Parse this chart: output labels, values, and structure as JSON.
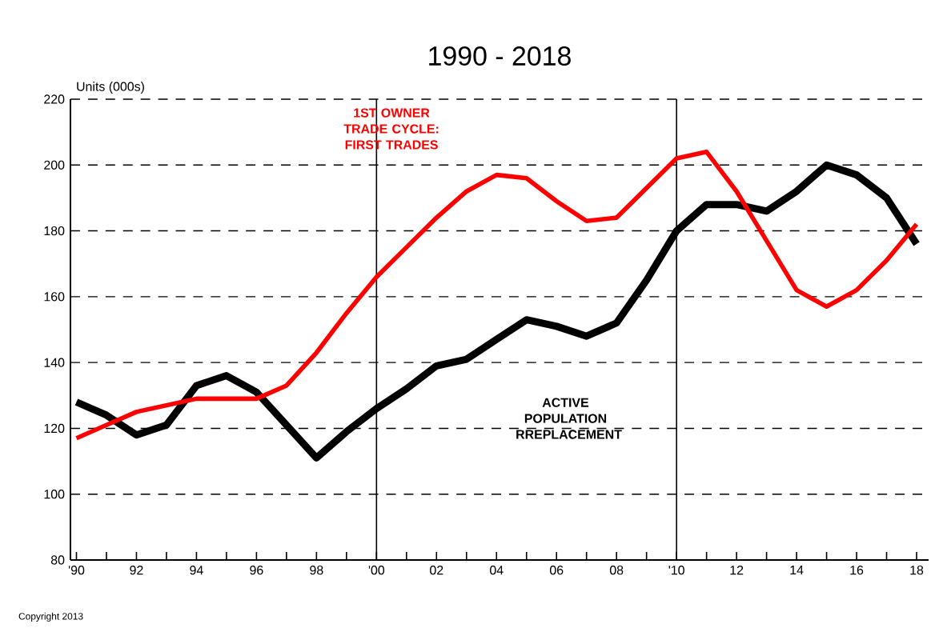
{
  "chart_data": {
    "type": "line",
    "title": "1990 - 2018",
    "ylabel": "Units (000s)",
    "x": [
      1990,
      1991,
      1992,
      1993,
      1994,
      1995,
      1996,
      1997,
      1998,
      1999,
      2000,
      2001,
      2002,
      2003,
      2004,
      2005,
      2006,
      2007,
      2008,
      2009,
      2010,
      2011,
      2012,
      2013,
      2014,
      2015,
      2016,
      2017,
      2018
    ],
    "series": [
      {
        "name": "ACTIVE POPULATION RREPLACEMENT",
        "color": "#000000",
        "values": [
          128,
          124,
          118,
          121,
          133,
          136,
          131,
          121,
          111,
          119,
          126,
          132,
          139,
          141,
          147,
          153,
          151,
          148,
          152,
          165,
          180,
          188,
          188,
          186,
          192,
          200,
          197,
          190,
          176
        ]
      },
      {
        "name": "1ST OWNER TRADE CYCLE: FIRST TRADES",
        "color": "#ff0000",
        "values": [
          117,
          121,
          125,
          127,
          129,
          129,
          129,
          133,
          143,
          155,
          166,
          175,
          184,
          192,
          197,
          196,
          189,
          183,
          184,
          193,
          202,
          204,
          192,
          177,
          162,
          157,
          162,
          171,
          182
        ]
      }
    ],
    "xlim": [
      1989.8,
      2018.4
    ],
    "ylim": [
      80,
      220
    ],
    "yticks": [
      80,
      100,
      120,
      140,
      160,
      180,
      200,
      220
    ],
    "xticks": [
      {
        "value": 1990,
        "label": "'90"
      },
      {
        "value": 1991,
        "label": null
      },
      {
        "value": 1992,
        "label": "92"
      },
      {
        "value": 1993,
        "label": null
      },
      {
        "value": 1994,
        "label": "94"
      },
      {
        "value": 1995,
        "label": null
      },
      {
        "value": 1996,
        "label": "96"
      },
      {
        "value": 1997,
        "label": null
      },
      {
        "value": 1998,
        "label": "98"
      },
      {
        "value": 1999,
        "label": null
      },
      {
        "value": 2000,
        "label": "'00"
      },
      {
        "value": 2001,
        "label": null
      },
      {
        "value": 2002,
        "label": "02"
      },
      {
        "value": 2003,
        "label": null
      },
      {
        "value": 2004,
        "label": "04"
      },
      {
        "value": 2005,
        "label": null
      },
      {
        "value": 2006,
        "label": "06"
      },
      {
        "value": 2007,
        "label": null
      },
      {
        "value": 2008,
        "label": "08"
      },
      {
        "value": 2009,
        "label": null
      },
      {
        "value": 2010,
        "label": "'10"
      },
      {
        "value": 2011,
        "label": null
      },
      {
        "value": 2012,
        "label": "12"
      },
      {
        "value": 2013,
        "label": null
      },
      {
        "value": 2014,
        "label": "14"
      },
      {
        "value": 2015,
        "label": null
      },
      {
        "value": 2016,
        "label": "16"
      },
      {
        "value": 2017,
        "label": null
      },
      {
        "value": 2018,
        "label": "18"
      }
    ],
    "ref_lines": [
      {
        "axis": "x",
        "value": 2000,
        "color": "#000000"
      },
      {
        "axis": "x",
        "value": 2010,
        "color": "#000000"
      }
    ],
    "grid": "y",
    "line_style": "solid",
    "marker": "none",
    "annotations": [
      "Copyright 2013"
    ]
  }
}
